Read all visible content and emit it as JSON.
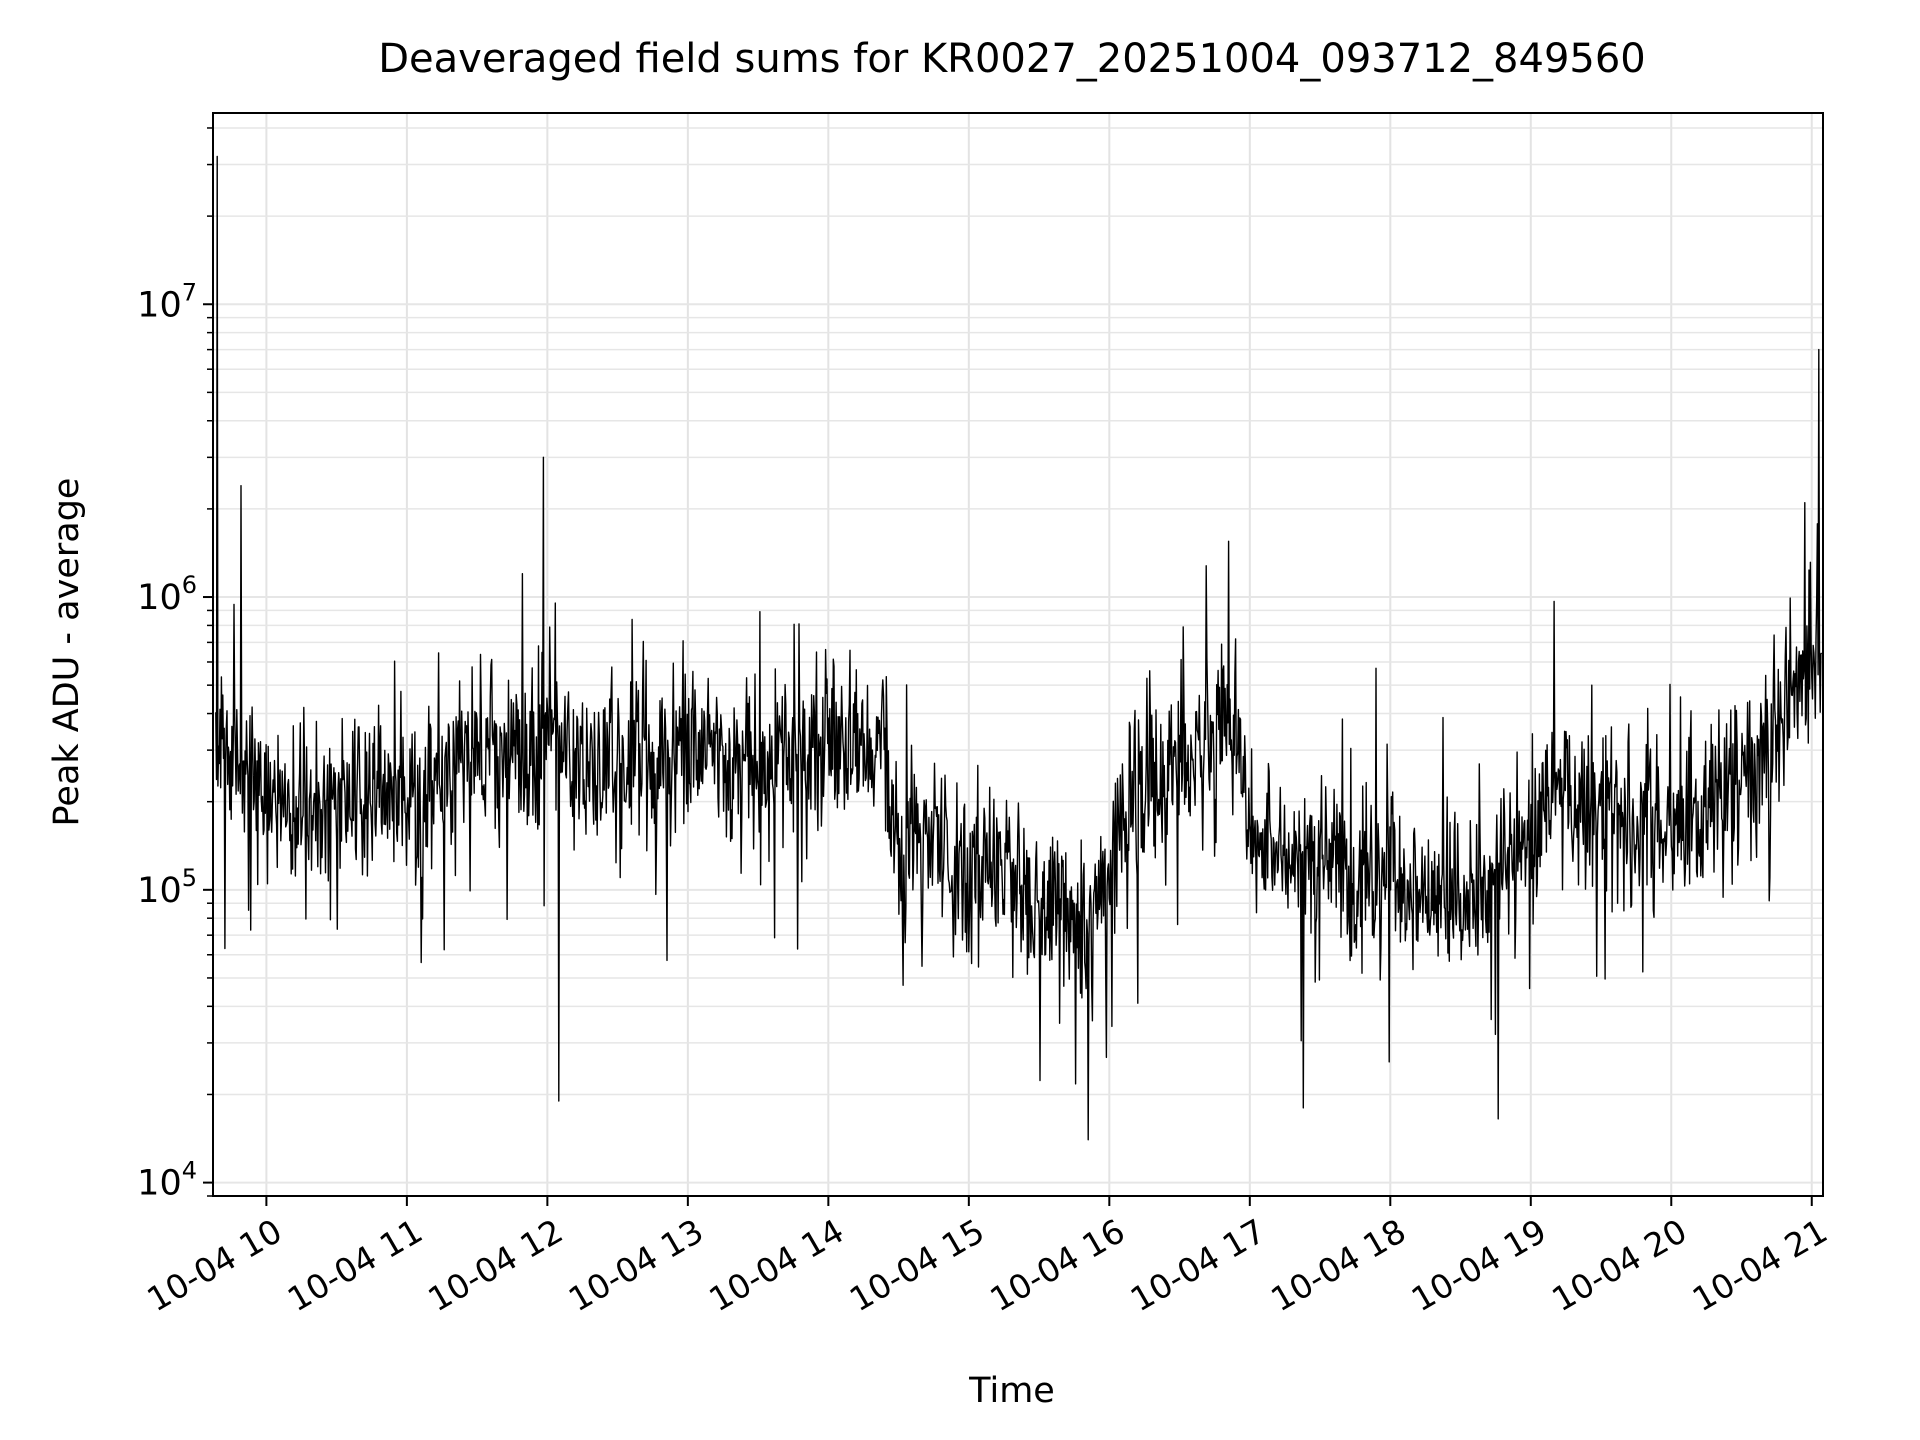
{
  "chart_data": {
    "type": "line",
    "title": "Deaveraged field sums for KR0027_20251004_093712_849560",
    "xlabel": "Time",
    "ylabel": "Peak ADU - average",
    "yscale": "log",
    "ylim": [
      9000,
      45000000
    ],
    "xlim_hours": [
      9.62,
      21.08
    ],
    "grid": true,
    "line_color": "#000000",
    "x_ticks": [
      {
        "hour": 10,
        "label": "10-04 10"
      },
      {
        "hour": 11,
        "label": "10-04 11"
      },
      {
        "hour": 12,
        "label": "10-04 12"
      },
      {
        "hour": 13,
        "label": "10-04 13"
      },
      {
        "hour": 14,
        "label": "10-04 14"
      },
      {
        "hour": 15,
        "label": "10-04 15"
      },
      {
        "hour": 16,
        "label": "10-04 16"
      },
      {
        "hour": 17,
        "label": "10-04 17"
      },
      {
        "hour": 18,
        "label": "10-04 18"
      },
      {
        "hour": 19,
        "label": "10-04 19"
      },
      {
        "hour": 20,
        "label": "10-04 20"
      },
      {
        "hour": 21,
        "label": "10-04 21"
      }
    ],
    "y_ticks": [
      {
        "value": 10000,
        "base": "10",
        "exp": "4"
      },
      {
        "value": 100000,
        "base": "10",
        "exp": "5"
      },
      {
        "value": 1000000,
        "base": "10",
        "exp": "6"
      },
      {
        "value": 10000000,
        "base": "10",
        "exp": "7"
      }
    ],
    "baseline": {
      "hours": [
        9.62,
        9.8,
        10.2,
        10.6,
        11.0,
        11.5,
        12.0,
        12.5,
        13.0,
        13.5,
        14.0,
        14.4,
        14.45,
        14.8,
        15.2,
        15.6,
        15.85,
        16.1,
        16.5,
        16.9,
        17.0,
        17.5,
        18.0,
        18.5,
        18.9,
        19.2,
        19.6,
        20.0,
        20.4,
        20.7,
        20.9,
        21.08
      ],
      "values": [
        400000,
        250000,
        180000,
        220000,
        200000,
        280000,
        300000,
        270000,
        290000,
        260000,
        330000,
        320000,
        150000,
        130000,
        120000,
        80000,
        70000,
        180000,
        250000,
        380000,
        150000,
        120000,
        100000,
        90000,
        130000,
        220000,
        180000,
        160000,
        230000,
        300000,
        550000,
        650000
      ]
    },
    "spikes": [
      {
        "hour": 9.65,
        "value": 32000000
      },
      {
        "hour": 9.82,
        "value": 2400000
      },
      {
        "hour": 11.97,
        "value": 3000000
      },
      {
        "hour": 12.08,
        "value": 19000
      },
      {
        "hour": 15.85,
        "value": 14000
      },
      {
        "hour": 16.85,
        "value": 1550000
      },
      {
        "hour": 17.38,
        "value": 18000
      },
      {
        "hour": 18.77,
        "value": 16500
      },
      {
        "hour": 20.95,
        "value": 2100000
      },
      {
        "hour": 21.05,
        "value": 7000000
      }
    ],
    "n_points": 2300,
    "seed": 27
  }
}
